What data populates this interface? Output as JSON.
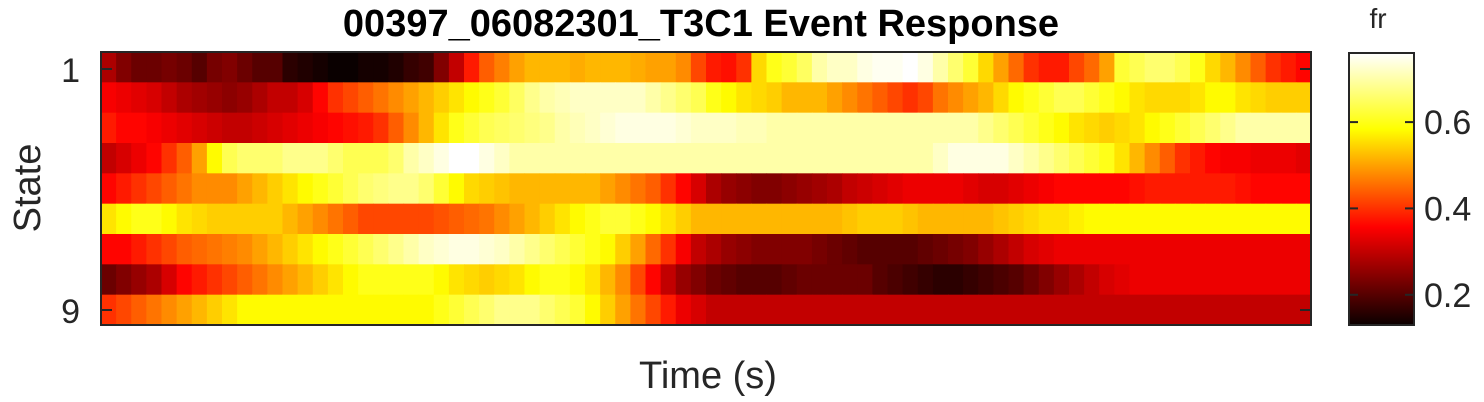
{
  "chart_data": {
    "type": "heatmap",
    "title": "00397_06082301_T3C1 Event Response",
    "xlabel": "Time (s)",
    "ylabel": "State",
    "y_tick_labels": [
      "1",
      "9"
    ],
    "colorbar": {
      "label": "fr",
      "colormap": "hot",
      "range": [
        0.13,
        0.76
      ],
      "ticks": [
        0.2,
        0.4,
        0.6
      ],
      "tick_labels": [
        "0.2",
        "0.4",
        "0.6"
      ]
    },
    "states": [
      1,
      2,
      3,
      4,
      5,
      6,
      7,
      8,
      9
    ],
    "n_time_bins": 80,
    "values": [
      [
        0.28,
        0.24,
        0.22,
        0.22,
        0.23,
        0.22,
        0.2,
        0.23,
        0.24,
        0.22,
        0.2,
        0.2,
        0.16,
        0.15,
        0.14,
        0.13,
        0.13,
        0.14,
        0.14,
        0.15,
        0.17,
        0.18,
        0.24,
        0.3,
        0.38,
        0.44,
        0.47,
        0.5,
        0.52,
        0.52,
        0.52,
        0.51,
        0.52,
        0.52,
        0.52,
        0.51,
        0.5,
        0.5,
        0.48,
        0.42,
        0.38,
        0.37,
        0.4,
        0.55,
        0.6,
        0.62,
        0.65,
        0.7,
        0.72,
        0.72,
        0.74,
        0.75,
        0.75,
        0.76,
        0.74,
        0.7,
        0.66,
        0.62,
        0.55,
        0.5,
        0.45,
        0.4,
        0.38,
        0.38,
        0.42,
        0.45,
        0.5,
        0.62,
        0.64,
        0.66,
        0.66,
        0.64,
        0.6,
        0.55,
        0.52,
        0.48,
        0.44,
        0.4,
        0.38,
        0.36
      ],
      [
        0.35,
        0.34,
        0.33,
        0.32,
        0.3,
        0.28,
        0.27,
        0.26,
        0.25,
        0.26,
        0.28,
        0.3,
        0.3,
        0.32,
        0.36,
        0.4,
        0.42,
        0.44,
        0.46,
        0.48,
        0.5,
        0.52,
        0.54,
        0.56,
        0.58,
        0.6,
        0.62,
        0.65,
        0.68,
        0.7,
        0.71,
        0.72,
        0.72,
        0.72,
        0.72,
        0.72,
        0.7,
        0.68,
        0.66,
        0.64,
        0.6,
        0.58,
        0.56,
        0.55,
        0.54,
        0.52,
        0.52,
        0.52,
        0.5,
        0.48,
        0.46,
        0.44,
        0.42,
        0.4,
        0.42,
        0.46,
        0.48,
        0.5,
        0.52,
        0.55,
        0.58,
        0.6,
        0.62,
        0.64,
        0.64,
        0.62,
        0.6,
        0.58,
        0.56,
        0.55,
        0.55,
        0.55,
        0.56,
        0.58,
        0.58,
        0.56,
        0.55,
        0.54,
        0.54,
        0.54
      ],
      [
        0.38,
        0.36,
        0.36,
        0.35,
        0.34,
        0.33,
        0.32,
        0.31,
        0.3,
        0.3,
        0.31,
        0.32,
        0.33,
        0.34,
        0.35,
        0.36,
        0.37,
        0.38,
        0.4,
        0.44,
        0.48,
        0.52,
        0.56,
        0.6,
        0.62,
        0.64,
        0.65,
        0.66,
        0.67,
        0.68,
        0.7,
        0.71,
        0.72,
        0.73,
        0.74,
        0.74,
        0.74,
        0.74,
        0.73,
        0.72,
        0.72,
        0.72,
        0.71,
        0.71,
        0.7,
        0.7,
        0.7,
        0.7,
        0.7,
        0.7,
        0.7,
        0.7,
        0.7,
        0.7,
        0.7,
        0.7,
        0.7,
        0.7,
        0.68,
        0.66,
        0.64,
        0.62,
        0.6,
        0.58,
        0.56,
        0.55,
        0.54,
        0.55,
        0.56,
        0.58,
        0.6,
        0.62,
        0.64,
        0.66,
        0.68,
        0.7,
        0.7,
        0.7,
        0.7,
        0.7
      ],
      [
        0.3,
        0.32,
        0.34,
        0.36,
        0.4,
        0.44,
        0.5,
        0.58,
        0.64,
        0.66,
        0.66,
        0.66,
        0.68,
        0.68,
        0.68,
        0.66,
        0.64,
        0.64,
        0.64,
        0.66,
        0.7,
        0.72,
        0.74,
        0.76,
        0.76,
        0.74,
        0.72,
        0.7,
        0.7,
        0.7,
        0.7,
        0.7,
        0.7,
        0.7,
        0.7,
        0.7,
        0.7,
        0.7,
        0.7,
        0.7,
        0.7,
        0.7,
        0.7,
        0.7,
        0.7,
        0.7,
        0.7,
        0.7,
        0.7,
        0.7,
        0.7,
        0.7,
        0.7,
        0.7,
        0.7,
        0.72,
        0.74,
        0.74,
        0.74,
        0.74,
        0.72,
        0.7,
        0.68,
        0.66,
        0.64,
        0.62,
        0.6,
        0.56,
        0.52,
        0.48,
        0.44,
        0.4,
        0.38,
        0.36,
        0.35,
        0.35,
        0.34,
        0.34,
        0.34,
        0.33
      ],
      [
        0.36,
        0.38,
        0.4,
        0.42,
        0.44,
        0.46,
        0.48,
        0.48,
        0.48,
        0.5,
        0.52,
        0.54,
        0.56,
        0.58,
        0.6,
        0.62,
        0.64,
        0.66,
        0.67,
        0.68,
        0.68,
        0.66,
        0.62,
        0.58,
        0.55,
        0.54,
        0.53,
        0.52,
        0.52,
        0.52,
        0.52,
        0.52,
        0.52,
        0.5,
        0.48,
        0.46,
        0.44,
        0.4,
        0.36,
        0.32,
        0.28,
        0.26,
        0.25,
        0.24,
        0.24,
        0.25,
        0.26,
        0.27,
        0.28,
        0.3,
        0.31,
        0.32,
        0.33,
        0.34,
        0.34,
        0.34,
        0.34,
        0.33,
        0.32,
        0.32,
        0.33,
        0.34,
        0.35,
        0.36,
        0.36,
        0.36,
        0.36,
        0.36,
        0.37,
        0.38,
        0.38,
        0.38,
        0.38,
        0.38,
        0.38,
        0.37,
        0.36,
        0.36,
        0.36,
        0.36
      ],
      [
        0.56,
        0.58,
        0.6,
        0.6,
        0.58,
        0.56,
        0.55,
        0.54,
        0.54,
        0.54,
        0.54,
        0.54,
        0.52,
        0.5,
        0.48,
        0.46,
        0.44,
        0.42,
        0.42,
        0.42,
        0.42,
        0.42,
        0.43,
        0.44,
        0.45,
        0.46,
        0.48,
        0.5,
        0.52,
        0.54,
        0.56,
        0.58,
        0.6,
        0.62,
        0.62,
        0.6,
        0.58,
        0.56,
        0.54,
        0.52,
        0.52,
        0.52,
        0.52,
        0.52,
        0.52,
        0.52,
        0.52,
        0.52,
        0.52,
        0.53,
        0.54,
        0.54,
        0.54,
        0.53,
        0.52,
        0.52,
        0.52,
        0.52,
        0.52,
        0.53,
        0.54,
        0.55,
        0.56,
        0.56,
        0.57,
        0.58,
        0.58,
        0.58,
        0.58,
        0.58,
        0.58,
        0.58,
        0.58,
        0.58,
        0.58,
        0.58,
        0.58,
        0.58,
        0.58,
        0.58
      ],
      [
        0.36,
        0.36,
        0.38,
        0.4,
        0.42,
        0.44,
        0.45,
        0.46,
        0.47,
        0.48,
        0.5,
        0.52,
        0.54,
        0.56,
        0.58,
        0.6,
        0.62,
        0.64,
        0.66,
        0.68,
        0.7,
        0.72,
        0.73,
        0.74,
        0.74,
        0.73,
        0.72,
        0.7,
        0.68,
        0.66,
        0.64,
        0.62,
        0.6,
        0.58,
        0.54,
        0.5,
        0.45,
        0.4,
        0.35,
        0.3,
        0.28,
        0.26,
        0.25,
        0.24,
        0.24,
        0.24,
        0.24,
        0.23,
        0.22,
        0.21,
        0.2,
        0.2,
        0.2,
        0.2,
        0.21,
        0.22,
        0.23,
        0.24,
        0.26,
        0.28,
        0.3,
        0.32,
        0.33,
        0.34,
        0.34,
        0.34,
        0.34,
        0.34,
        0.34,
        0.34,
        0.34,
        0.34,
        0.34,
        0.34,
        0.34,
        0.34,
        0.34,
        0.34,
        0.34,
        0.34
      ],
      [
        0.22,
        0.24,
        0.26,
        0.28,
        0.32,
        0.36,
        0.38,
        0.4,
        0.42,
        0.44,
        0.46,
        0.48,
        0.5,
        0.52,
        0.54,
        0.56,
        0.58,
        0.6,
        0.6,
        0.6,
        0.6,
        0.6,
        0.58,
        0.56,
        0.55,
        0.54,
        0.55,
        0.56,
        0.58,
        0.6,
        0.6,
        0.58,
        0.56,
        0.52,
        0.48,
        0.42,
        0.36,
        0.3,
        0.26,
        0.24,
        0.22,
        0.21,
        0.2,
        0.2,
        0.2,
        0.21,
        0.22,
        0.22,
        0.22,
        0.22,
        0.22,
        0.2,
        0.19,
        0.18,
        0.17,
        0.16,
        0.16,
        0.17,
        0.18,
        0.19,
        0.2,
        0.22,
        0.24,
        0.26,
        0.28,
        0.3,
        0.32,
        0.33,
        0.34,
        0.34,
        0.34,
        0.34,
        0.34,
        0.34,
        0.34,
        0.34,
        0.34,
        0.34,
        0.34,
        0.34
      ],
      [
        0.4,
        0.42,
        0.44,
        0.46,
        0.48,
        0.5,
        0.52,
        0.54,
        0.56,
        0.58,
        0.58,
        0.58,
        0.58,
        0.58,
        0.58,
        0.58,
        0.58,
        0.58,
        0.58,
        0.58,
        0.58,
        0.58,
        0.6,
        0.62,
        0.64,
        0.66,
        0.68,
        0.68,
        0.68,
        0.66,
        0.64,
        0.62,
        0.58,
        0.54,
        0.5,
        0.46,
        0.42,
        0.38,
        0.34,
        0.32,
        0.3,
        0.3,
        0.3,
        0.3,
        0.3,
        0.3,
        0.3,
        0.3,
        0.3,
        0.3,
        0.3,
        0.3,
        0.3,
        0.3,
        0.3,
        0.3,
        0.3,
        0.3,
        0.3,
        0.3,
        0.3,
        0.3,
        0.3,
        0.3,
        0.3,
        0.3,
        0.3,
        0.3,
        0.3,
        0.3,
        0.3,
        0.3,
        0.3,
        0.3,
        0.3,
        0.3,
        0.3,
        0.3,
        0.3,
        0.3
      ]
    ]
  }
}
